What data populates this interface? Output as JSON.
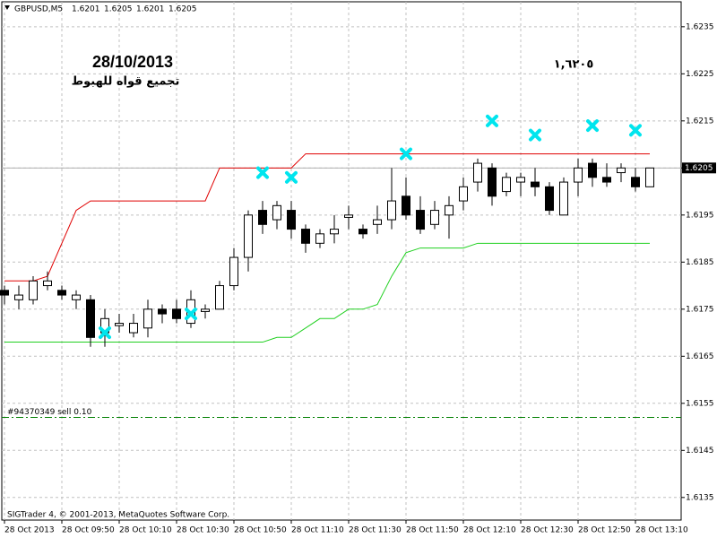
{
  "chart_data": {
    "type": "candlestick",
    "symbol": "GBPUSD,M5",
    "header_prices": [
      1.6201,
      1.6205,
      1.6201,
      1.6205
    ],
    "footer": "SIGTrader 4, © 2001-2013, MetaQuotes Software Corp.",
    "annotations": [
      "28/10/2013",
      "تجميع قواه للهبوط",
      "١,٦٢٠٥"
    ],
    "categories": [
      "28 Oct 2013",
      null,
      null,
      null,
      "28 Oct 09:50",
      null,
      null,
      null,
      "28 Oct 10:10",
      null,
      null,
      null,
      "28 Oct 10:30",
      null,
      null,
      null,
      "28 Oct 10:50",
      null,
      null,
      null,
      "28 Oct 11:10",
      null,
      null,
      null,
      "28 Oct 11:30",
      null,
      null,
      null,
      "28 Oct 11:50",
      null,
      null,
      null,
      "28 Oct 12:10",
      null,
      null,
      null,
      "28 Oct 12:30",
      null,
      null,
      null,
      "28 Oct 12:50",
      null,
      null,
      null,
      "28 Oct 13:10",
      null
    ],
    "open": [
      1.6179,
      1.6177,
      1.6177,
      1.618,
      1.6179,
      1.6177,
      1.6177,
      1.617,
      1.61715,
      1.617,
      1.6171,
      1.6175,
      1.6175,
      1.6172,
      1.61745,
      1.6175,
      1.618,
      1.6186,
      1.6196,
      1.6194,
      1.6196,
      1.6192,
      1.6189,
      1.6191,
      1.61945,
      1.6192,
      1.6193,
      1.6194,
      1.6199,
      1.6196,
      1.6193,
      1.6195,
      1.6198,
      1.6202,
      1.6205,
      1.62,
      1.6202,
      1.6202,
      1.6201,
      1.6195,
      1.6202,
      1.6206,
      1.6203,
      1.6204,
      1.6203,
      1.6201
    ],
    "high": [
      1.618,
      1.618,
      1.6182,
      1.6183,
      1.618,
      1.6179,
      1.6178,
      1.6175,
      1.6174,
      1.6174,
      1.6177,
      1.6176,
      1.6177,
      1.6179,
      1.6176,
      1.6181,
      1.6188,
      1.6196,
      1.6198,
      1.6198,
      1.6198,
      1.6193,
      1.6192,
      1.6195,
      1.6197,
      1.6193,
      1.6197,
      1.6205,
      1.6203,
      1.6199,
      1.6198,
      1.6199,
      1.6203,
      1.6207,
      1.6206,
      1.6204,
      1.6204,
      1.6205,
      1.6202,
      1.6203,
      1.6207,
      1.6207,
      1.6206,
      1.6206,
      1.6205,
      1.6205
    ],
    "low": [
      1.6176,
      1.6175,
      1.6176,
      1.6179,
      1.6177,
      1.6175,
      1.6167,
      1.6167,
      1.617,
      1.6169,
      1.6169,
      1.6172,
      1.6172,
      1.6171,
      1.6173,
      1.6175,
      1.6179,
      1.6183,
      1.6191,
      1.6192,
      1.619,
      1.6187,
      1.6188,
      1.6189,
      1.6192,
      1.619,
      1.6191,
      1.6192,
      1.6194,
      1.6191,
      1.6192,
      1.619,
      1.6196,
      1.62,
      1.6197,
      1.6199,
      1.6199,
      1.6199,
      1.6195,
      1.6195,
      1.6199,
      1.6201,
      1.6201,
      1.6202,
      1.62,
      1.6201
    ],
    "close": [
      1.6178,
      1.6178,
      1.6181,
      1.6181,
      1.6178,
      1.6178,
      1.6169,
      1.6173,
      1.6172,
      1.6172,
      1.6175,
      1.6174,
      1.6173,
      1.6177,
      1.6175,
      1.618,
      1.6186,
      1.6195,
      1.6193,
      1.6197,
      1.6192,
      1.6189,
      1.6191,
      1.6192,
      1.6195,
      1.6191,
      1.6194,
      1.6198,
      1.6195,
      1.6192,
      1.6196,
      1.6197,
      1.6201,
      1.6206,
      1.6199,
      1.6203,
      1.6203,
      1.6201,
      1.6196,
      1.6202,
      1.6205,
      1.6203,
      1.6202,
      1.6205,
      1.6201,
      1.6205
    ],
    "up_color": "#ffffff",
    "down_color": "#000000",
    "series": [
      {
        "color": "#e00000",
        "values": [
          1.6181,
          1.6181,
          1.6181,
          1.6182,
          1.6189,
          1.6196,
          1.6198,
          1.6198,
          1.6198,
          1.6198,
          1.6198,
          1.6198,
          1.6198,
          1.6198,
          1.6198,
          1.6205,
          1.6205,
          1.6205,
          1.6205,
          1.6205,
          1.6205,
          1.6208,
          1.6208,
          1.6208,
          1.6208,
          1.6208,
          1.6208,
          1.6208,
          1.6208,
          1.6208,
          1.6208,
          1.6208,
          1.6208,
          1.6208,
          1.6208,
          1.6208,
          1.6208,
          1.6208,
          1.6208,
          1.6208,
          1.6208,
          1.6208,
          1.6208,
          1.6208,
          1.6208,
          1.6208
        ]
      },
      {
        "color": "#20d020",
        "values": [
          1.6168,
          1.6168,
          1.6168,
          1.6168,
          1.6168,
          1.6168,
          1.6168,
          1.6168,
          1.6168,
          1.6168,
          1.6168,
          1.6168,
          1.6168,
          1.6168,
          1.6168,
          1.6168,
          1.6168,
          1.6168,
          1.6168,
          1.6169,
          1.6169,
          1.6171,
          1.6173,
          1.6173,
          1.6175,
          1.6175,
          1.6176,
          1.6182,
          1.6187,
          1.6188,
          1.6188,
          1.6188,
          1.6188,
          1.6189,
          1.6189,
          1.6189,
          1.6189,
          1.6189,
          1.6189,
          1.6189,
          1.6189,
          1.6189,
          1.6189,
          1.6189,
          1.6189,
          1.6189
        ]
      }
    ],
    "signals": {
      "color": "#00e5ee",
      "values": [
        null,
        null,
        null,
        null,
        null,
        null,
        null,
        1.617,
        null,
        null,
        null,
        null,
        null,
        1.6174,
        null,
        null,
        null,
        null,
        1.6204,
        null,
        1.6203,
        null,
        null,
        null,
        null,
        null,
        null,
        null,
        1.6208,
        null,
        null,
        null,
        null,
        null,
        1.6215,
        null,
        null,
        1.6212,
        null,
        null,
        null,
        1.6214,
        null,
        null,
        1.6213,
        null
      ]
    },
    "current_price": 1.6205,
    "order": {
      "label": "#94370349 sell 0.10",
      "price": 1.6152,
      "color": "#008000"
    },
    "ylim": [
      1.61302,
      1.62403
    ],
    "yticks": [
      1.6135,
      1.6145,
      1.6155,
      1.6165,
      1.6175,
      1.6185,
      1.6195,
      1.6205,
      1.6215,
      1.6225,
      1.6235
    ],
    "grid": true
  }
}
